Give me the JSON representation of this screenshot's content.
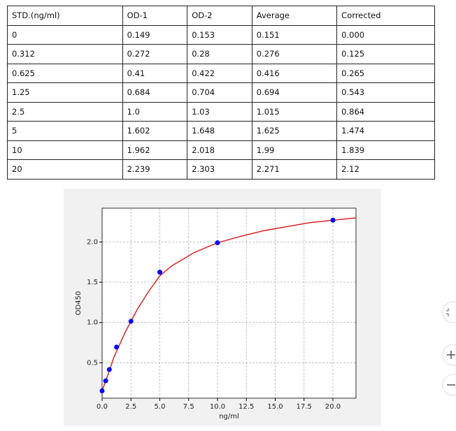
{
  "table": {
    "header": [
      "STD.(ng/ml)",
      "OD-1",
      "OD-2",
      "Average",
      "Corrected"
    ],
    "rows": [
      [
        "0",
        "0.149",
        "0.153",
        "0.151",
        "0.000"
      ],
      [
        "0.312",
        "0.272",
        "0.28",
        "0.276",
        "0.125"
      ],
      [
        "0.625",
        "0.41",
        "0.422",
        "0.416",
        "0.265"
      ],
      [
        "1.25",
        "0.684",
        "0.704",
        "0.694",
        "0.543"
      ],
      [
        "2.5",
        "1.0",
        "1.03",
        "1.015",
        "0.864"
      ],
      [
        "5",
        "1.602",
        "1.648",
        "1.625",
        "1.474"
      ],
      [
        "10",
        "1.962",
        "2.018",
        "1.99",
        "1.839"
      ],
      [
        "20",
        "2.239",
        "2.303",
        "2.271",
        "2.12"
      ]
    ]
  },
  "chart_data": {
    "type": "scatter",
    "xlabel": "ng/ml",
    "ylabel": "OD450",
    "x": [
      0,
      0.312,
      0.625,
      1.25,
      2.5,
      5,
      10,
      20
    ],
    "values": [
      0.151,
      0.276,
      0.416,
      0.694,
      1.015,
      1.625,
      1.99,
      2.271
    ],
    "color": "#0000ff",
    "fit": {
      "x": [
        0,
        0.5,
        1,
        2,
        3,
        4,
        5,
        6,
        8,
        10,
        12,
        14,
        16,
        18,
        20,
        22
      ],
      "values": [
        0.15,
        0.35,
        0.56,
        0.88,
        1.15,
        1.38,
        1.58,
        1.7,
        1.87,
        1.99,
        2.07,
        2.14,
        2.19,
        2.24,
        2.27,
        2.3
      ],
      "color": "#d62728"
    },
    "xlim": [
      0,
      22
    ],
    "ylim": [
      0.06,
      2.42
    ],
    "xticks": [
      {
        "value": 0,
        "label": "0.0"
      },
      2.5,
      {
        "value": 5,
        "label": "5.0"
      },
      7.5,
      {
        "value": 10,
        "label": "10.0"
      },
      12.5,
      {
        "value": 15,
        "label": "15.0"
      },
      17.5,
      {
        "value": 20,
        "label": "20.0"
      }
    ],
    "yticks": [
      0.5,
      {
        "value": 1,
        "label": "1.0"
      },
      1.5,
      {
        "value": 2,
        "label": "2.0"
      }
    ],
    "grid": true
  }
}
